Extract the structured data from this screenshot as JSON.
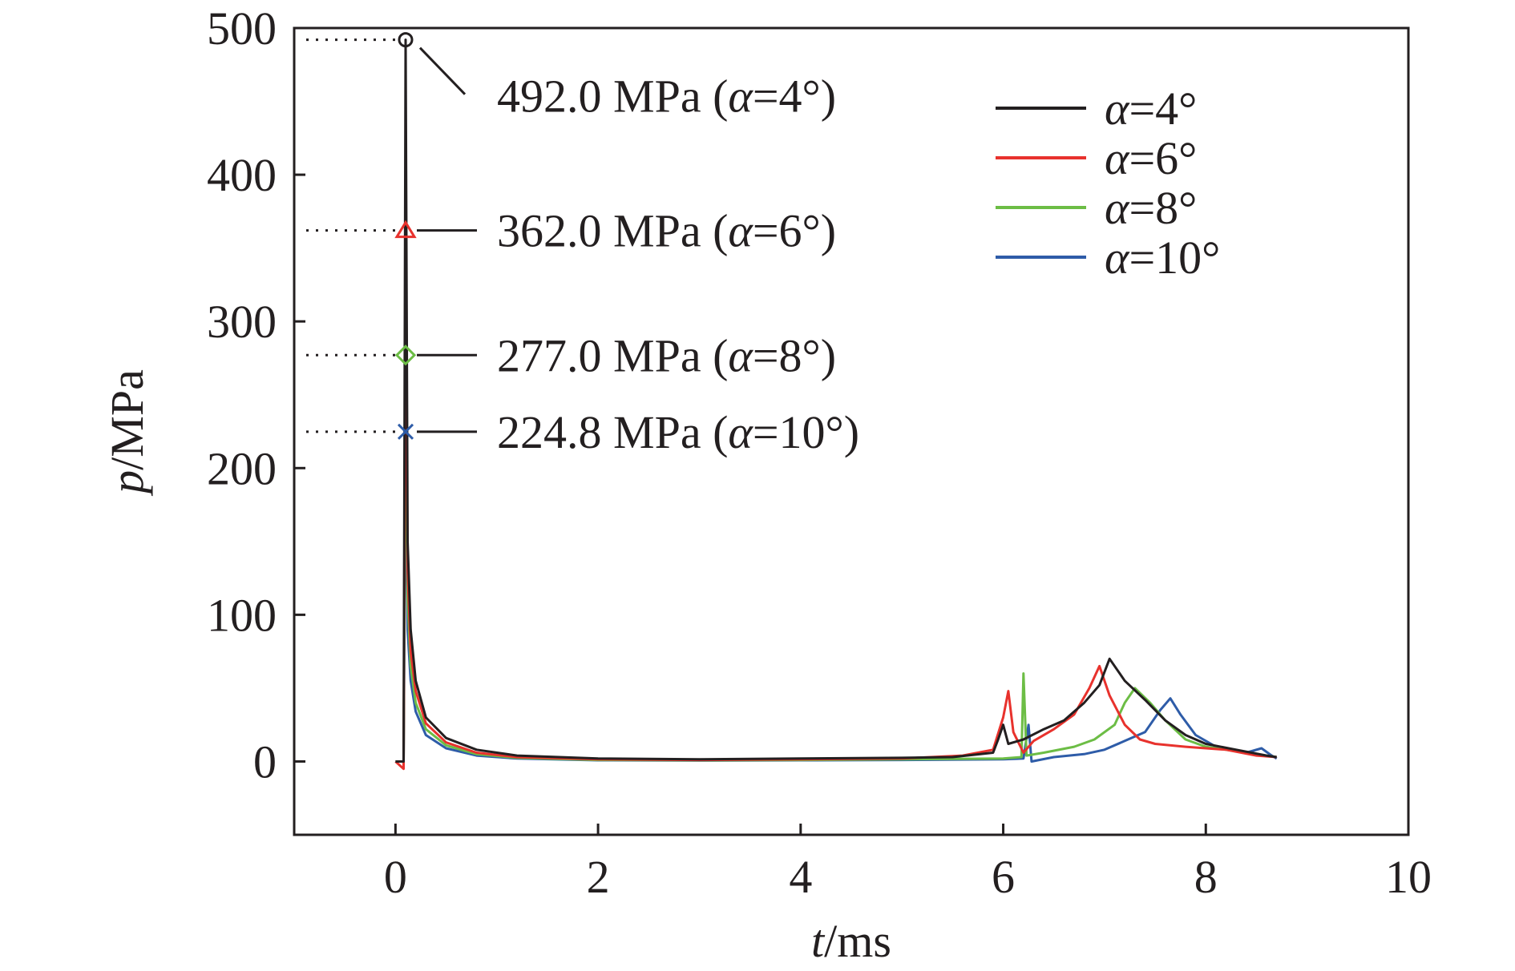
{
  "chart_data": {
    "type": "line",
    "xlabel": {
      "var": "t",
      "unit": "/ms"
    },
    "ylabel": {
      "var": "p",
      "unit": "/MPa"
    },
    "xlim": [
      -1,
      10
    ],
    "ylim": [
      -50,
      500
    ],
    "xticks": [
      0,
      2,
      4,
      6,
      8,
      10
    ],
    "yticks": [
      0,
      100,
      200,
      300,
      400,
      500
    ],
    "xtick_labels": [
      "0",
      "2",
      "4",
      "6",
      "8",
      "10"
    ],
    "ytick_labels": [
      "0",
      "100",
      "200",
      "300",
      "400",
      "500"
    ],
    "grid": false,
    "legend_position": "top-right",
    "series": [
      {
        "name": "α=4°",
        "legend_var": "α",
        "legend_val": "=4°",
        "color": "#231f20",
        "peak": {
          "x": 0.1,
          "y": 492.0,
          "marker": "circle"
        },
        "points": [
          [
            0.0,
            0
          ],
          [
            0.08,
            0
          ],
          [
            0.1,
            492
          ],
          [
            0.12,
            150
          ],
          [
            0.15,
            90
          ],
          [
            0.2,
            55
          ],
          [
            0.3,
            30
          ],
          [
            0.5,
            16
          ],
          [
            0.8,
            8
          ],
          [
            1.2,
            4
          ],
          [
            2,
            2
          ],
          [
            3,
            1.5
          ],
          [
            4,
            2
          ],
          [
            5,
            2.5
          ],
          [
            5.5,
            3
          ],
          [
            5.9,
            6
          ],
          [
            5.95,
            15
          ],
          [
            6.0,
            25
          ],
          [
            6.05,
            12
          ],
          [
            6.2,
            15
          ],
          [
            6.4,
            22
          ],
          [
            6.6,
            28
          ],
          [
            6.8,
            40
          ],
          [
            6.95,
            52
          ],
          [
            7.05,
            70
          ],
          [
            7.2,
            55
          ],
          [
            7.4,
            42
          ],
          [
            7.6,
            28
          ],
          [
            7.8,
            18
          ],
          [
            8.0,
            12
          ],
          [
            8.3,
            8
          ],
          [
            8.6,
            4
          ],
          [
            8.7,
            3
          ]
        ]
      },
      {
        "name": "α=6°",
        "legend_var": "α",
        "legend_val": "=6°",
        "color": "#e8322d",
        "peak": {
          "x": 0.1,
          "y": 362.0,
          "marker": "triangle"
        },
        "points": [
          [
            0.0,
            0
          ],
          [
            0.08,
            -5
          ],
          [
            0.1,
            362
          ],
          [
            0.12,
            130
          ],
          [
            0.15,
            75
          ],
          [
            0.2,
            48
          ],
          [
            0.3,
            26
          ],
          [
            0.5,
            13
          ],
          [
            0.8,
            6
          ],
          [
            1.2,
            3
          ],
          [
            2,
            1.5
          ],
          [
            3,
            1
          ],
          [
            4,
            1.5
          ],
          [
            5,
            2
          ],
          [
            5.6,
            4
          ],
          [
            5.9,
            8
          ],
          [
            6.0,
            30
          ],
          [
            6.05,
            48
          ],
          [
            6.1,
            20
          ],
          [
            6.2,
            6
          ],
          [
            6.3,
            14
          ],
          [
            6.5,
            22
          ],
          [
            6.7,
            32
          ],
          [
            6.85,
            50
          ],
          [
            6.95,
            65
          ],
          [
            7.05,
            45
          ],
          [
            7.2,
            25
          ],
          [
            7.35,
            15
          ],
          [
            7.5,
            12
          ],
          [
            7.8,
            10
          ],
          [
            8.2,
            8
          ],
          [
            8.5,
            4
          ],
          [
            8.7,
            3
          ]
        ]
      },
      {
        "name": "α=8°",
        "legend_var": "α",
        "legend_val": "=8°",
        "color": "#6cbd45",
        "peak": {
          "x": 0.1,
          "y": 277.0,
          "marker": "diamond"
        },
        "points": [
          [
            0.0,
            0
          ],
          [
            0.08,
            0
          ],
          [
            0.1,
            277
          ],
          [
            0.12,
            110
          ],
          [
            0.15,
            65
          ],
          [
            0.2,
            40
          ],
          [
            0.3,
            22
          ],
          [
            0.5,
            11
          ],
          [
            0.8,
            5
          ],
          [
            1.2,
            2.5
          ],
          [
            2,
            1
          ],
          [
            3,
            0.8
          ],
          [
            4,
            1
          ],
          [
            5,
            1.5
          ],
          [
            6.0,
            2
          ],
          [
            6.18,
            3
          ],
          [
            6.2,
            60
          ],
          [
            6.23,
            4
          ],
          [
            6.4,
            6
          ],
          [
            6.7,
            10
          ],
          [
            6.9,
            15
          ],
          [
            7.1,
            25
          ],
          [
            7.2,
            40
          ],
          [
            7.3,
            50
          ],
          [
            7.45,
            40
          ],
          [
            7.6,
            28
          ],
          [
            7.8,
            15
          ],
          [
            8.0,
            10
          ],
          [
            8.2,
            8
          ],
          [
            8.5,
            5
          ],
          [
            8.7,
            3
          ]
        ]
      },
      {
        "name": "α=10°",
        "legend_var": "α",
        "legend_val": "=10°",
        "color": "#2e5ca8",
        "peak": {
          "x": 0.1,
          "y": 224.8,
          "marker": "x"
        },
        "points": [
          [
            0.0,
            0
          ],
          [
            0.08,
            0
          ],
          [
            0.1,
            224.8
          ],
          [
            0.12,
            90
          ],
          [
            0.15,
            55
          ],
          [
            0.2,
            34
          ],
          [
            0.3,
            18
          ],
          [
            0.5,
            9
          ],
          [
            0.8,
            4
          ],
          [
            1.2,
            2
          ],
          [
            2,
            0.8
          ],
          [
            3,
            0.6
          ],
          [
            4,
            0.8
          ],
          [
            5,
            1
          ],
          [
            6.0,
            1.5
          ],
          [
            6.2,
            2
          ],
          [
            6.25,
            25
          ],
          [
            6.28,
            0
          ],
          [
            6.5,
            3
          ],
          [
            6.8,
            5
          ],
          [
            7.0,
            8
          ],
          [
            7.2,
            14
          ],
          [
            7.4,
            20
          ],
          [
            7.55,
            35
          ],
          [
            7.65,
            43
          ],
          [
            7.75,
            32
          ],
          [
            7.9,
            18
          ],
          [
            8.1,
            10
          ],
          [
            8.4,
            6
          ],
          [
            8.55,
            9
          ],
          [
            8.65,
            4
          ],
          [
            8.7,
            2
          ]
        ]
      }
    ],
    "annotations": [
      {
        "value": "492.0 MPa",
        "var": "α",
        "val": "=4°"
      },
      {
        "value": "362.0 MPa",
        "var": "α",
        "val": "=6°"
      },
      {
        "value": "277.0 MPa",
        "var": "α",
        "val": "=8°"
      },
      {
        "value": "224.8 MPa",
        "var": "α",
        "val": "=10°"
      }
    ]
  }
}
